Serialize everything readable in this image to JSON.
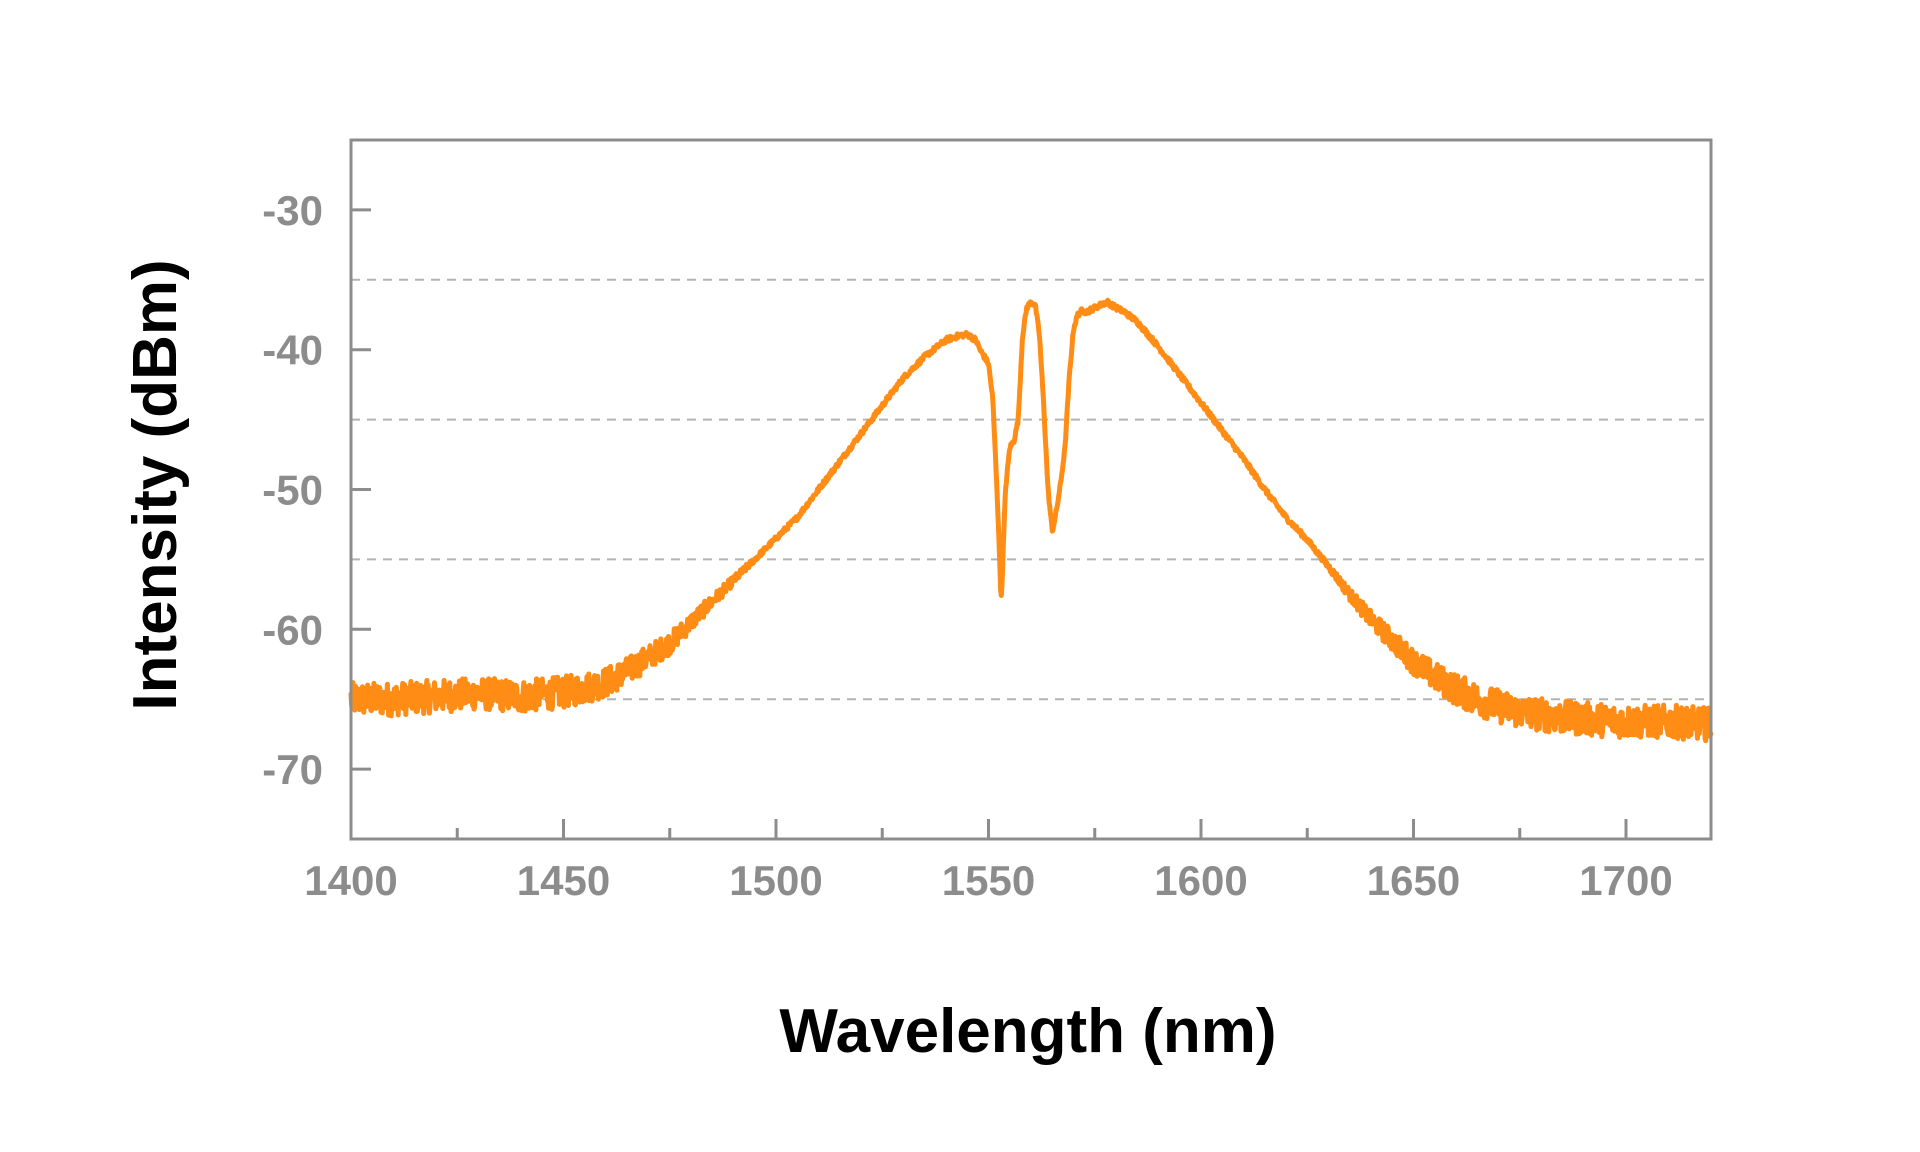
{
  "chart_data": {
    "type": "line",
    "xlabel": "Wavelength (nm)",
    "ylabel": "Intensity (dBm)",
    "xlim": [
      1400,
      1720
    ],
    "ylim": [
      -75,
      -25
    ],
    "x_ticks": [
      1400,
      1450,
      1500,
      1550,
      1600,
      1650,
      1700
    ],
    "x_minor_ticks": [
      1425,
      1475,
      1525,
      1575,
      1625,
      1675
    ],
    "y_ticks": [
      -30,
      -40,
      -50,
      -60,
      -70
    ],
    "y_gridlines": [
      -35,
      -45,
      -55,
      -65
    ],
    "grid": "dashed horizontal",
    "series": [
      {
        "color": "#ff8c14",
        "noise_dBm": 1.2,
        "x": [
          1400,
          1410,
          1420,
          1430,
          1440,
          1450,
          1455,
          1460,
          1465,
          1470,
          1475,
          1480,
          1485,
          1490,
          1495,
          1500,
          1505,
          1510,
          1515,
          1520,
          1525,
          1530,
          1535,
          1540,
          1543,
          1545,
          1547,
          1548,
          1550,
          1551,
          1552,
          1553,
          1554,
          1555,
          1556,
          1557,
          1558,
          1559,
          1560,
          1561,
          1562,
          1563,
          1564,
          1565,
          1566,
          1567,
          1568,
          1569,
          1570,
          1571,
          1572,
          1573,
          1575,
          1577,
          1578,
          1580,
          1582,
          1585,
          1590,
          1595,
          1600,
          1605,
          1610,
          1615,
          1620,
          1625,
          1630,
          1635,
          1640,
          1645,
          1650,
          1655,
          1660,
          1665,
          1670,
          1675,
          1680,
          1685,
          1690,
          1695,
          1700,
          1705,
          1710,
          1715,
          1720
        ],
        "y": [
          -65.0,
          -65.0,
          -64.8,
          -64.6,
          -64.8,
          -64.5,
          -64.2,
          -63.8,
          -63.0,
          -62.0,
          -61.0,
          -59.5,
          -58.0,
          -56.5,
          -55.0,
          -53.5,
          -52.0,
          -50.0,
          -48.0,
          -46.0,
          -44.0,
          -42.0,
          -40.5,
          -39.3,
          -39.0,
          -38.9,
          -39.3,
          -40.0,
          -41.0,
          -43.5,
          -50.0,
          -58.0,
          -50.0,
          -47.0,
          -46.5,
          -45.0,
          -39.0,
          -37.0,
          -36.6,
          -36.8,
          -39.0,
          -44.0,
          -50.0,
          -53.0,
          -51.5,
          -49.5,
          -47.0,
          -42.0,
          -38.5,
          -37.5,
          -37.2,
          -37.3,
          -37.0,
          -36.7,
          -36.6,
          -37.0,
          -37.3,
          -38.0,
          -39.8,
          -41.8,
          -43.8,
          -45.8,
          -47.8,
          -50.0,
          -52.0,
          -53.6,
          -55.5,
          -57.5,
          -59.3,
          -60.8,
          -62.3,
          -63.4,
          -64.3,
          -65.0,
          -65.5,
          -65.9,
          -66.1,
          -66.3,
          -66.4,
          -66.5,
          -66.6,
          -66.6,
          -66.6,
          -66.7,
          -66.8
        ]
      }
    ]
  }
}
